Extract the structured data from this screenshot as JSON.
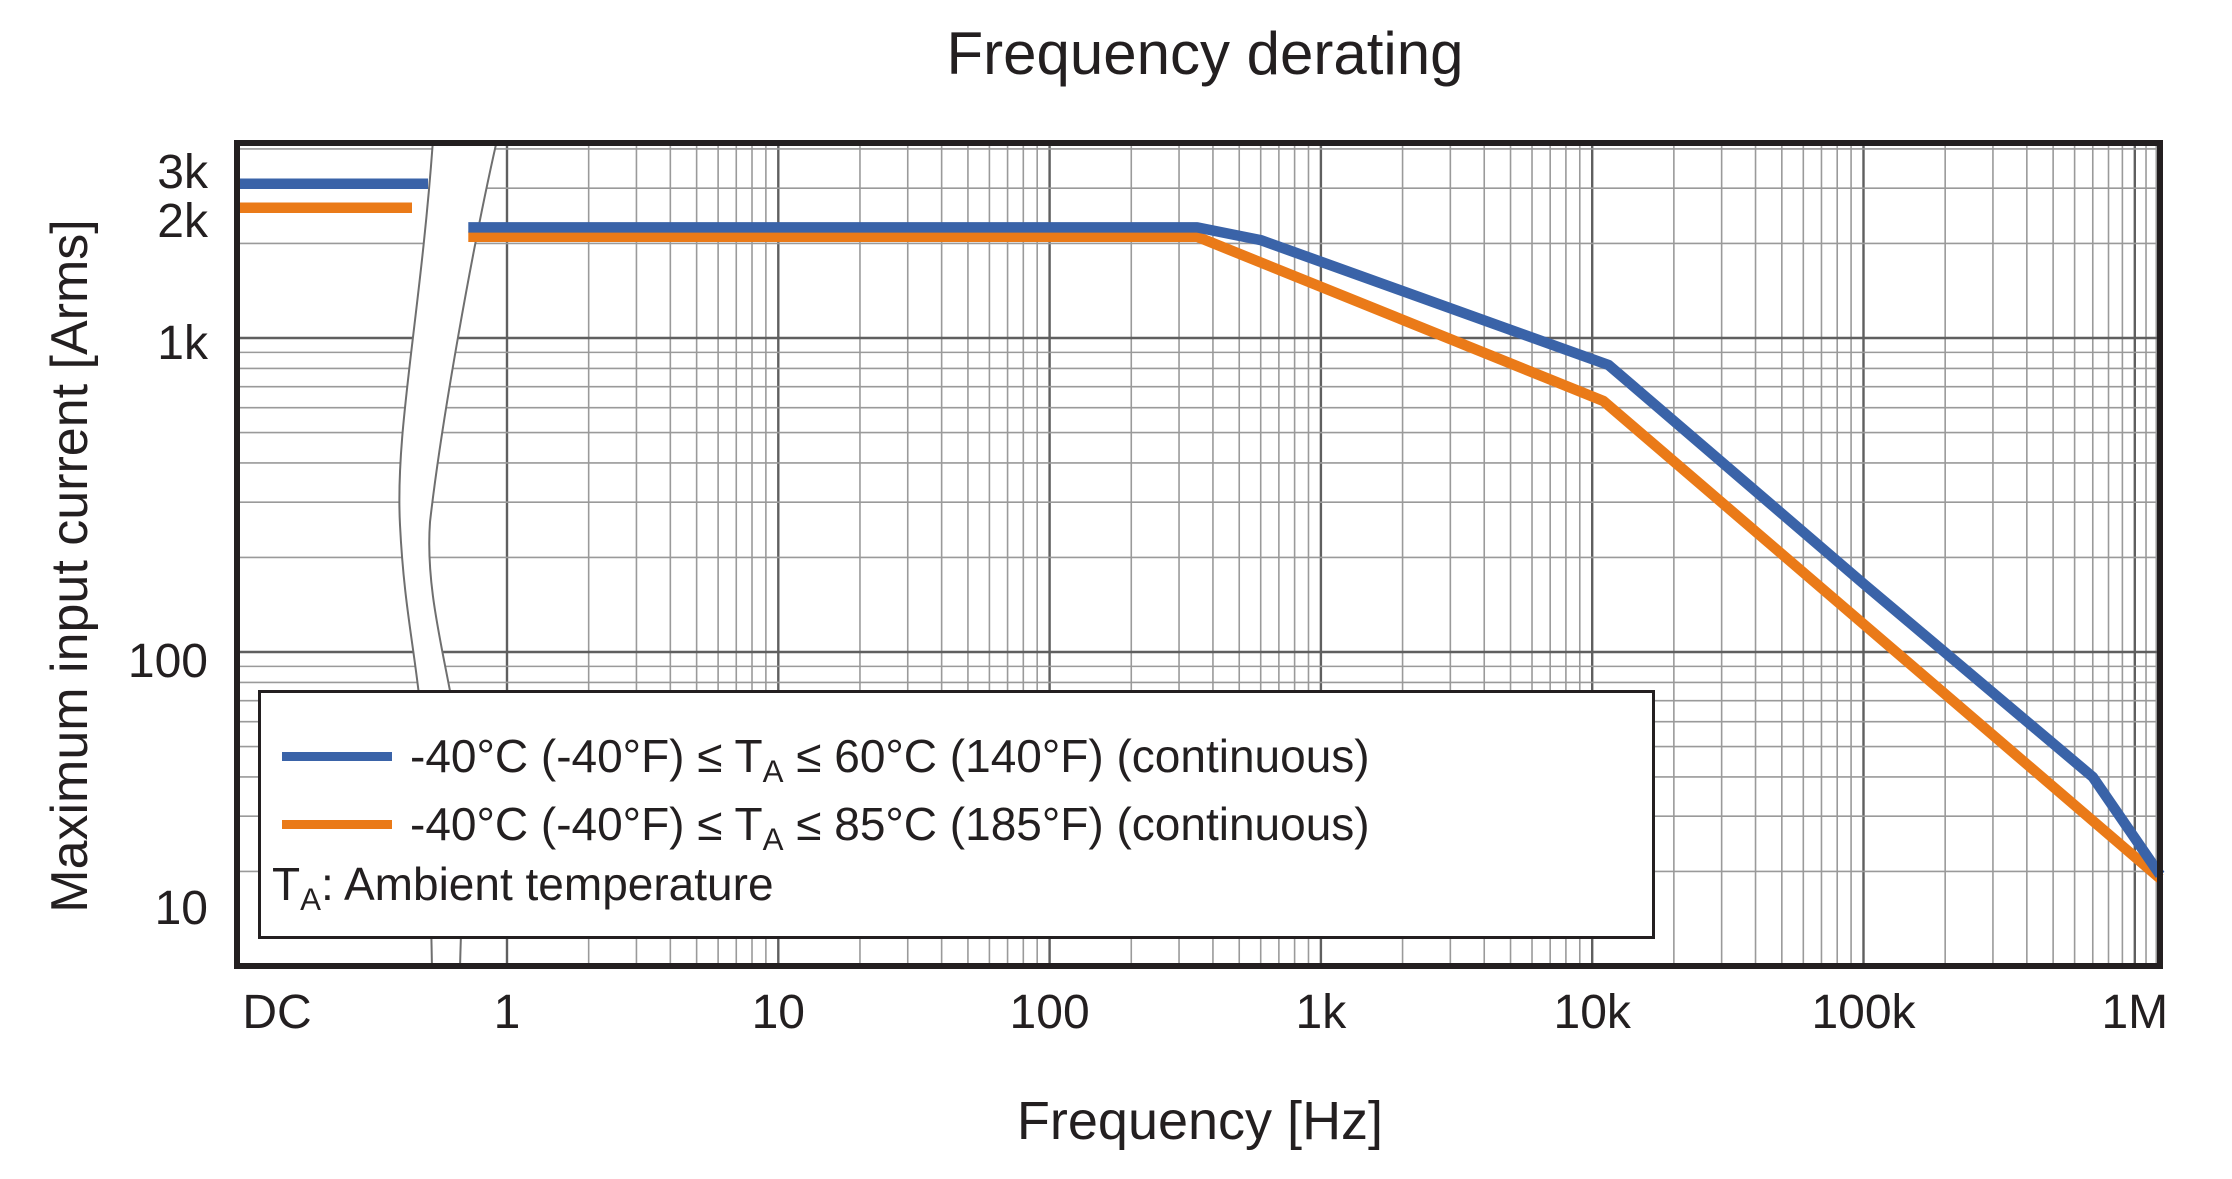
{
  "title": "Frequency derating",
  "x_axis": {
    "label": "Frequency [Hz]"
  },
  "y_axis": {
    "label": "Maximum input current [Arms]"
  },
  "legend": {
    "items": [
      {
        "pre": "-40°C (-40°F) ≤ T",
        "sub": "A",
        "post": " ≤ 60°C (140°F) (continuous)",
        "color": "#3a63a8"
      },
      {
        "pre": "-40°C (-40°F) ≤ T",
        "sub": "A",
        "post": " ≤ 85°C (185°F) (continuous)",
        "color": "#ea7a18"
      }
    ],
    "note": {
      "pre": "T",
      "sub": "A",
      "post": ": Ambient temperature"
    }
  },
  "chart_data": {
    "type": "line",
    "title": "Frequency derating",
    "xlabel": "Frequency [Hz]",
    "ylabel": "Maximum input current [Arms]",
    "x_scale": "log",
    "y_scale": "log",
    "x_range_hz": [
      0.72,
      1240000
    ],
    "y_range_arms": [
      10,
      4180
    ],
    "x_axis_break": "wavy break between DC column and logarithmic axis (~1 Hz)",
    "grid": "log major + minor gridlines on both axes",
    "legend_position": "inside bottom-left",
    "x_ticks": [
      {
        "label": "DC",
        "value": null
      },
      {
        "label": "1",
        "value": 1
      },
      {
        "label": "10",
        "value": 10
      },
      {
        "label": "100",
        "value": 100
      },
      {
        "label": "1k",
        "value": 1000
      },
      {
        "label": "10k",
        "value": 10000
      },
      {
        "label": "100k",
        "value": 100000
      },
      {
        "label": "1M",
        "value": 1000000
      }
    ],
    "y_ticks": [
      {
        "label": "3k",
        "value": 3000
      },
      {
        "label": "2k",
        "value": 2000
      },
      {
        "label": "1k",
        "value": 1000
      },
      {
        "label": "100",
        "value": 100
      },
      {
        "label": "10",
        "value": 10
      }
    ],
    "series": [
      {
        "name": "-40°C (-40°F) ≤ TA ≤ 60°C (140°F) (continuous)",
        "color": "#3a63a8",
        "dc_value_arms": 3100,
        "points_hz_arms": [
          [
            0.72,
            2250
          ],
          [
            350,
            2250
          ],
          [
            600,
            2050
          ],
          [
            11500,
            820
          ],
          [
            100000,
            165
          ],
          [
            700000,
            40
          ],
          [
            1240000,
            19.5
          ]
        ]
      },
      {
        "name": "-40°C (-40°F) ≤ TA ≤ 85°C (185°F) (continuous)",
        "color": "#ea7a18",
        "dc_value_arms": 2600,
        "points_hz_arms": [
          [
            0.72,
            2100
          ],
          [
            350,
            2100
          ],
          [
            11000,
            630
          ],
          [
            1240000,
            19
          ]
        ]
      }
    ]
  },
  "colors": {
    "series_60c": "#3a63a8",
    "series_85c": "#ea7a18",
    "grid_major": "#5f5f5f",
    "grid_minor": "#9a9a9a",
    "frame": "#231f20",
    "background": "#ffffff"
  }
}
